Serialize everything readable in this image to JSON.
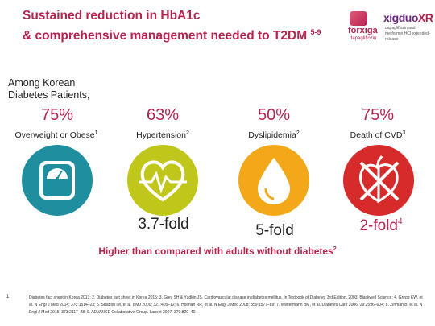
{
  "title": {
    "line1": "Sustained reduction in HbA1c",
    "line2": "& comprehensive management needed to T2DM",
    "ref": "5-9"
  },
  "logo": {
    "forxiga": "forxiga",
    "forxiga_sub": "dapagliflozin",
    "xigduo": "xigduo",
    "xigduo_xr": "XR",
    "xigduo_sub": "dapagliflozin and metformin HCl extended-release"
  },
  "intro": {
    "line1": "Among Korean",
    "line2": "Diabetes Patients,"
  },
  "stats": [
    {
      "percent": "75%",
      "label": "Overweight or Obese",
      "ref": "1",
      "fold": "",
      "fold_ref": "",
      "icon": "scale-icon",
      "color": "#1f8fa0"
    },
    {
      "percent": "63%",
      "label": "Hypertension",
      "ref": "2",
      "fold": "3.7-fold",
      "fold_ref": "",
      "icon": "heartbeat-icon",
      "color": "#c1c61b"
    },
    {
      "percent": "50%",
      "label": "Dyslipidemia",
      "ref": "2",
      "fold": "5-fold",
      "fold_ref": "",
      "icon": "drop-icon",
      "color": "#f2a818"
    },
    {
      "percent": "75%",
      "label": "Death of CVD",
      "ref": "3",
      "fold": "2-fold",
      "fold_ref": "4",
      "icon": "heart-icon",
      "color": "#d52b2b"
    }
  ],
  "higher_text": "Higher than compared with adults without diabetes",
  "higher_ref": "2",
  "footnote_num": "1.",
  "footnote": "Diabetes fact sheet in Korea 2013; 2. Diabetes fact sheet in Korea 2015; 3. Grey SH & Yudkin JS. Cardiovascular disease in diabetes mellitus. In Textbook of Diabetes 3rd Edition, 2003. Blackwell Science; 4. Gregg EW, et al. N Engl J Med 2014; 370:1514–23; 5. Stratton IM, et al. BMJ 2000; 321:405–12; 6. Holman RR, et al. N Engl J Med 2008; 359:1577–89; 7. Weltermann BM, et al. Diabetes Care 2006; 29:2596–604; 8. Zinman B, et al. N Engl J Med 2015; 373:2117–28; 9. ADVANCE Collaborative Group. Lancet 2007; 370:829–40."
}
